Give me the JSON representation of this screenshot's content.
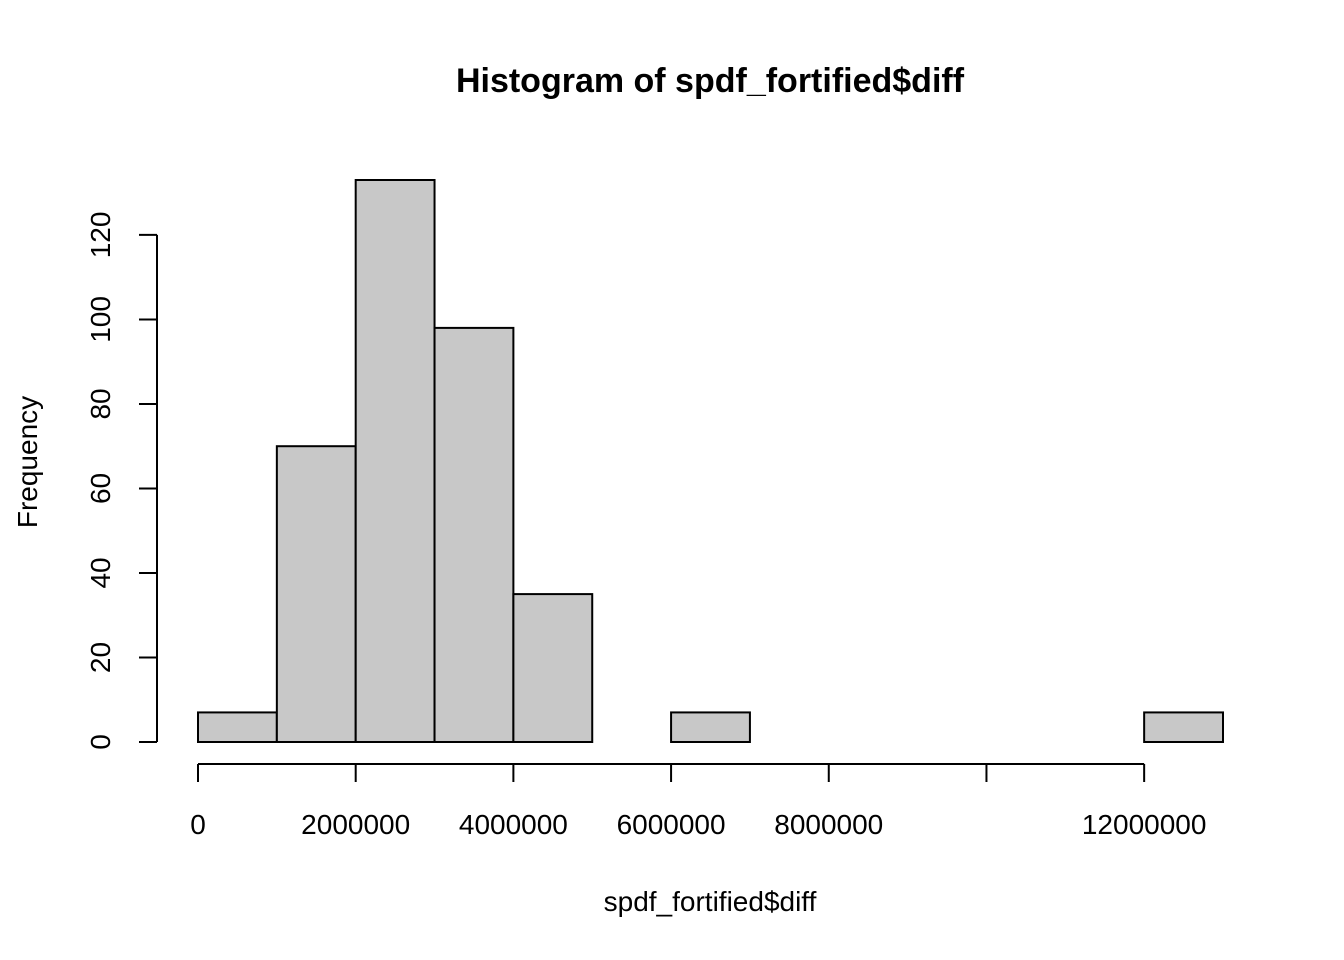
{
  "chart_data": {
    "type": "bar",
    "subtype": "histogram",
    "title": "Histogram of spdf_fortified$diff",
    "xlabel": "spdf_fortified$diff",
    "ylabel": "Frequency",
    "bins": [
      {
        "x0": 0,
        "x1": 1000000,
        "count": 7
      },
      {
        "x0": 1000000,
        "x1": 2000000,
        "count": 70
      },
      {
        "x0": 2000000,
        "x1": 3000000,
        "count": 133
      },
      {
        "x0": 3000000,
        "x1": 4000000,
        "count": 98
      },
      {
        "x0": 4000000,
        "x1": 5000000,
        "count": 35
      },
      {
        "x0": 5000000,
        "x1": 6000000,
        "count": 0
      },
      {
        "x0": 6000000,
        "x1": 7000000,
        "count": 7
      },
      {
        "x0": 7000000,
        "x1": 8000000,
        "count": 0
      },
      {
        "x0": 8000000,
        "x1": 9000000,
        "count": 0
      },
      {
        "x0": 9000000,
        "x1": 10000000,
        "count": 0
      },
      {
        "x0": 10000000,
        "x1": 11000000,
        "count": 0
      },
      {
        "x0": 11000000,
        "x1": 12000000,
        "count": 0
      },
      {
        "x0": 12000000,
        "x1": 13000000,
        "count": 7
      }
    ],
    "xlim": [
      0,
      13000000
    ],
    "ylim": [
      0,
      133
    ],
    "x_ticks": [
      {
        "value": 0,
        "label": "0"
      },
      {
        "value": 2000000,
        "label": "2000000"
      },
      {
        "value": 4000000,
        "label": "4000000"
      },
      {
        "value": 6000000,
        "label": "6000000"
      },
      {
        "value": 8000000,
        "label": "8000000"
      },
      {
        "value": 10000000,
        "label": ""
      },
      {
        "value": 12000000,
        "label": "12000000"
      }
    ],
    "y_ticks": [
      {
        "value": 0,
        "label": "0"
      },
      {
        "value": 20,
        "label": "20"
      },
      {
        "value": 40,
        "label": "40"
      },
      {
        "value": 60,
        "label": "60"
      },
      {
        "value": 80,
        "label": "80"
      },
      {
        "value": 100,
        "label": "100"
      },
      {
        "value": 120,
        "label": "120"
      }
    ],
    "bar_fill": "#c8c8c8",
    "bar_stroke": "#000000",
    "grid": false,
    "legend": "none"
  }
}
